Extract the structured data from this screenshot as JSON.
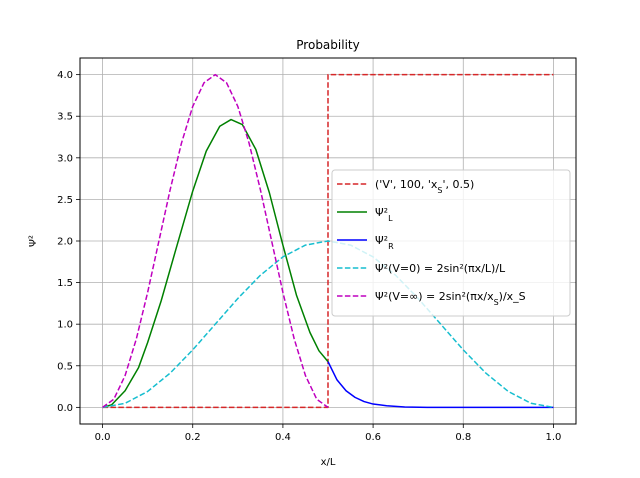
{
  "chart_data": {
    "type": "line",
    "title": "Probability",
    "xlabel": "x/L",
    "ylabel": "Ψ²",
    "xlim": [
      -0.05,
      1.05
    ],
    "ylim": [
      -0.2,
      4.2
    ],
    "xticks": [
      "0.0",
      "0.2",
      "0.4",
      "0.6",
      "0.8",
      "1.0"
    ],
    "yticks": [
      "0.0",
      "0.5",
      "1.0",
      "1.5",
      "2.0",
      "2.5",
      "3.0",
      "3.5",
      "4.0"
    ],
    "grid": true,
    "legend_position": "center-right",
    "series": [
      {
        "name": "('V', 100, 'x_S', 0.5)",
        "color": "#d62728",
        "style": "dashed",
        "x": [
          0.0,
          0.5,
          0.5,
          1.0
        ],
        "y": [
          0.0,
          0.0,
          4.0,
          4.0
        ]
      },
      {
        "name": "Ψ²_L",
        "color": "#008000",
        "style": "solid",
        "x": [
          0.0,
          0.02,
          0.05,
          0.08,
          0.1,
          0.13,
          0.16,
          0.2,
          0.23,
          0.26,
          0.285,
          0.31,
          0.34,
          0.37,
          0.4,
          0.43,
          0.46,
          0.48,
          0.5
        ],
        "y": [
          0.0,
          0.03,
          0.2,
          0.48,
          0.78,
          1.28,
          1.85,
          2.6,
          3.08,
          3.38,
          3.46,
          3.4,
          3.1,
          2.58,
          1.95,
          1.35,
          0.9,
          0.68,
          0.55
        ]
      },
      {
        "name": "Ψ²_R",
        "color": "#0000ff",
        "style": "solid",
        "x": [
          0.5,
          0.52,
          0.54,
          0.56,
          0.58,
          0.6,
          0.63,
          0.67,
          0.72,
          0.8,
          0.9,
          1.0
        ],
        "y": [
          0.55,
          0.33,
          0.2,
          0.12,
          0.07,
          0.04,
          0.02,
          0.005,
          0.0,
          0.0,
          0.0,
          0.0
        ]
      },
      {
        "name": "Ψ²(V=0) = 2sin²(πx/L)/L",
        "color": "#17becf",
        "style": "dashed",
        "x": [
          0.0,
          0.05,
          0.1,
          0.15,
          0.2,
          0.25,
          0.3,
          0.35,
          0.4,
          0.45,
          0.5,
          0.55,
          0.6,
          0.65,
          0.7,
          0.75,
          0.8,
          0.85,
          0.9,
          0.95,
          1.0
        ],
        "y": [
          0.0,
          0.049,
          0.191,
          0.412,
          0.691,
          1.0,
          1.309,
          1.588,
          1.809,
          1.951,
          2.0,
          1.951,
          1.809,
          1.588,
          1.309,
          1.0,
          0.691,
          0.412,
          0.191,
          0.049,
          0.0
        ]
      },
      {
        "name": "Ψ²(V=∞) = 2sin²(πx/x_S)/x_S",
        "color": "#bf00bf",
        "style": "dashed",
        "x": [
          0.0,
          0.025,
          0.05,
          0.075,
          0.1,
          0.125,
          0.15,
          0.175,
          0.2,
          0.225,
          0.25,
          0.275,
          0.3,
          0.325,
          0.35,
          0.375,
          0.4,
          0.425,
          0.45,
          0.475,
          0.5
        ],
        "y": [
          0.0,
          0.098,
          0.382,
          0.824,
          1.382,
          2.0,
          2.618,
          3.176,
          3.618,
          3.902,
          4.0,
          3.902,
          3.618,
          3.176,
          2.618,
          2.0,
          1.382,
          0.824,
          0.382,
          0.098,
          0.0
        ]
      }
    ]
  }
}
